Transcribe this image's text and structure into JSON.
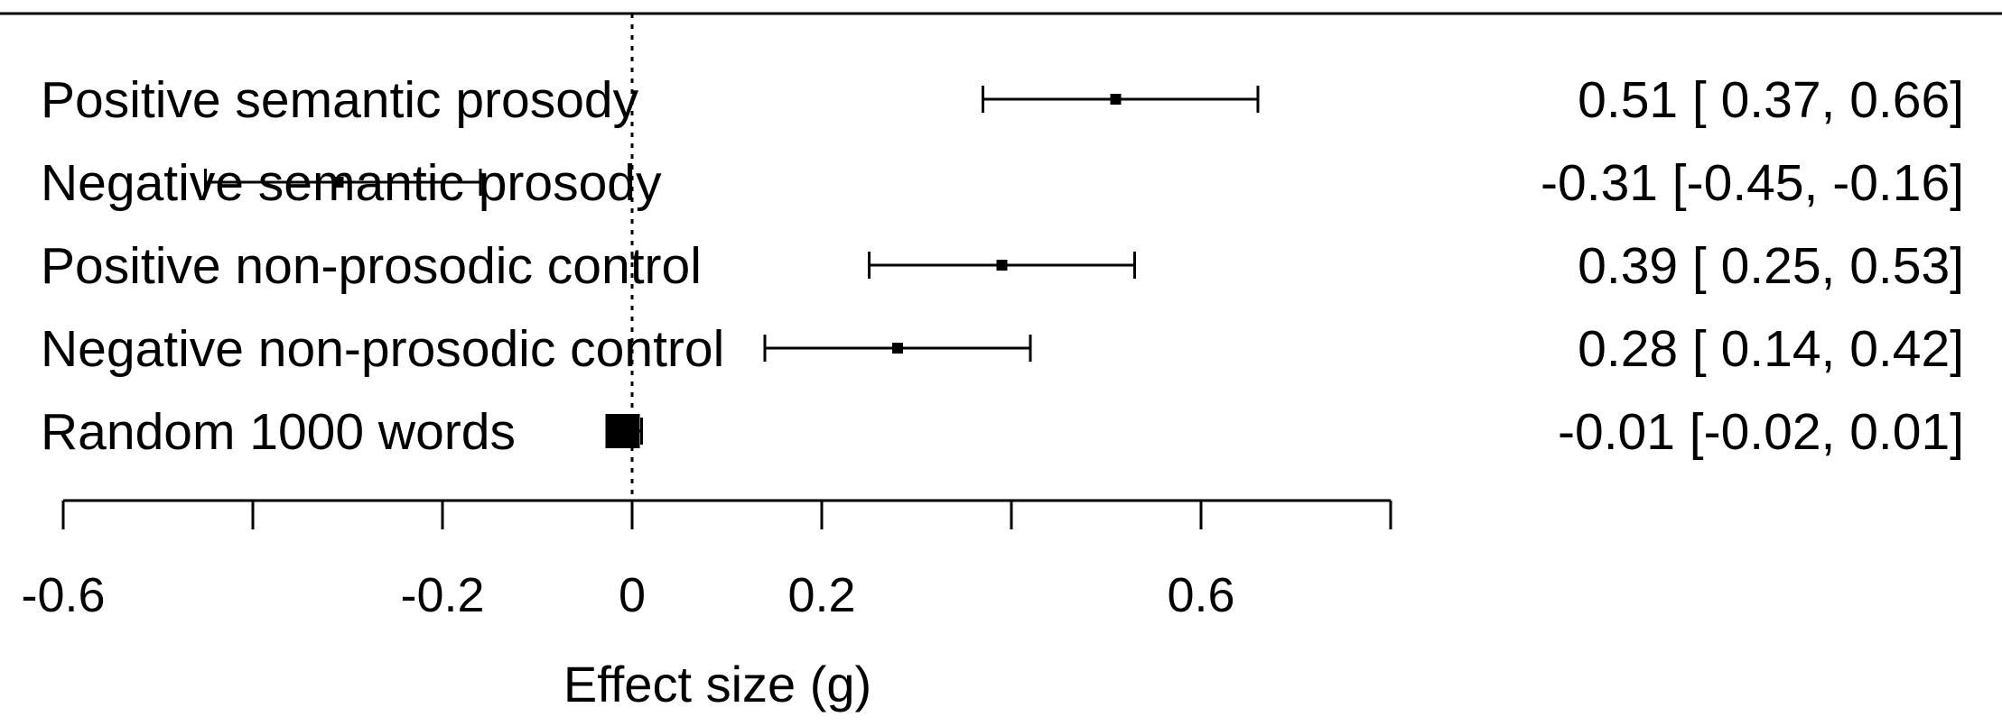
{
  "chart_data": {
    "type": "forest",
    "xlabel": "Effect size (g)",
    "xlim": [
      -0.6,
      0.8
    ],
    "xticks": [
      -0.6,
      -0.4,
      -0.2,
      0,
      0.2,
      0.4,
      0.6,
      0.8
    ],
    "xtick_labels": [
      "-0.6",
      "",
      "-0.2",
      "0",
      "0.2",
      "",
      "0.6",
      ""
    ],
    "reference_line": 0,
    "rows": [
      {
        "label": "Positive semantic prosody",
        "estimate": 0.51,
        "ci_low": 0.37,
        "ci_high": 0.66,
        "text": "0.51 [ 0.37,  0.66]"
      },
      {
        "label": "Negative semantic prosody",
        "estimate": -0.31,
        "ci_low": -0.45,
        "ci_high": -0.16,
        "text": "-0.31 [-0.45, -0.16]"
      },
      {
        "label": "Positive non-prosodic control",
        "estimate": 0.39,
        "ci_low": 0.25,
        "ci_high": 0.53,
        "text": "0.39 [ 0.25,  0.53]"
      },
      {
        "label": "Negative non-prosodic control",
        "estimate": 0.28,
        "ci_low": 0.14,
        "ci_high": 0.42,
        "text": "0.28 [ 0.14,  0.42]"
      },
      {
        "label": "Random 1000 words",
        "estimate": -0.01,
        "ci_low": -0.02,
        "ci_high": 0.01,
        "text": "-0.01 [-0.02,  0.01]",
        "large_marker": true
      }
    ]
  }
}
